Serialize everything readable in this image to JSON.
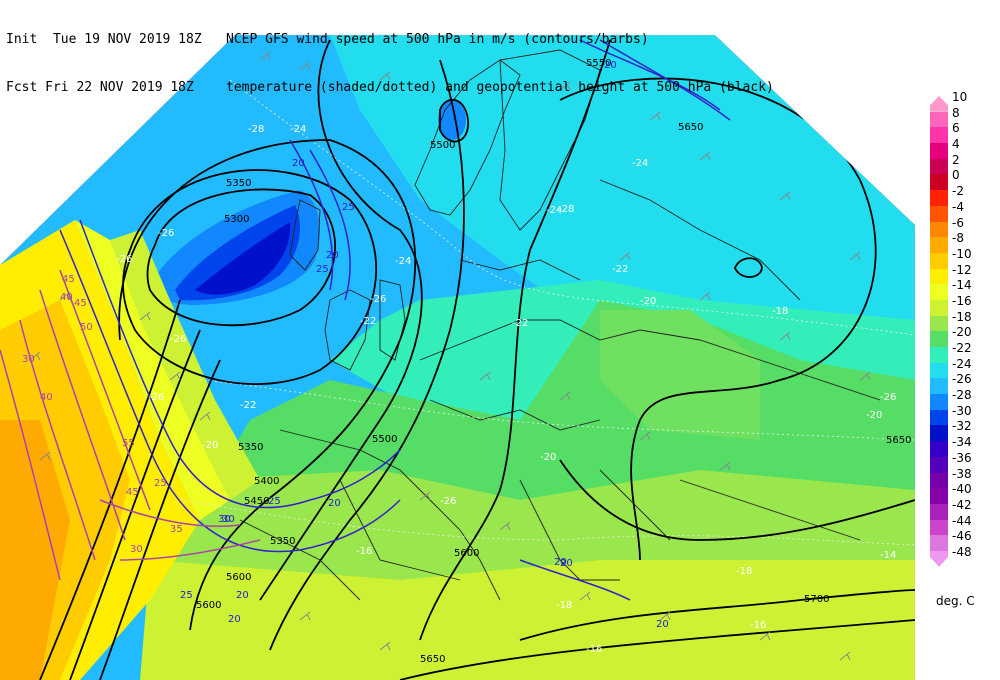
{
  "header": {
    "init_line": "Init  Tue 19 NOV 2019 18Z",
    "fcst_line": "Fcst Fri 22 NOV 2019 18Z",
    "title_line1": "NCEP GFS wind speed at 500 hPa in m/s (contours/barbs)",
    "title_line2": "temperature (shaded/dotted) and geopotential height at 500 hPa (black)"
  },
  "legend": {
    "units": "deg. C",
    "levels": [
      {
        "label": "10",
        "color": "#ff99cc"
      },
      {
        "label": "8",
        "color": "#ff66bb"
      },
      {
        "label": "6",
        "color": "#ff33aa"
      },
      {
        "label": "4",
        "color": "#e6007f"
      },
      {
        "label": "2",
        "color": "#cc0055"
      },
      {
        "label": "0",
        "color": "#cc0022"
      },
      {
        "label": "-2",
        "color": "#ff2200"
      },
      {
        "label": "-4",
        "color": "#ff5500"
      },
      {
        "label": "-6",
        "color": "#ff8800"
      },
      {
        "label": "-8",
        "color": "#ffaa00"
      },
      {
        "label": "-10",
        "color": "#ffcc00"
      },
      {
        "label": "-12",
        "color": "#ffee00"
      },
      {
        "label": "-14",
        "color": "#eeff22"
      },
      {
        "label": "-16",
        "color": "#ccf233"
      },
      {
        "label": "-18",
        "color": "#99e64d"
      },
      {
        "label": "-20",
        "color": "#55dd66"
      },
      {
        "label": "-22",
        "color": "#33eebb"
      },
      {
        "label": "-24",
        "color": "#22ddee"
      },
      {
        "label": "-26",
        "color": "#22bbff"
      },
      {
        "label": "-28",
        "color": "#1188ff"
      },
      {
        "label": "-30",
        "color": "#0044ee"
      },
      {
        "label": "-32",
        "color": "#0011cc"
      },
      {
        "label": "-34",
        "color": "#3300cc"
      },
      {
        "label": "-36",
        "color": "#5500bb"
      },
      {
        "label": "-38",
        "color": "#7700aa"
      },
      {
        "label": "-40",
        "color": "#8800aa"
      },
      {
        "label": "-42",
        "color": "#aa22bb"
      },
      {
        "label": "-44",
        "color": "#cc44cc"
      },
      {
        "label": "-46",
        "color": "#dd77dd"
      },
      {
        "label": "-48",
        "color": "#ee99ee"
      }
    ]
  },
  "map": {
    "height_labels": [
      "5550",
      "5500",
      "5650",
      "5350",
      "5300",
      "5350",
      "5500",
      "5400",
      "5450",
      "5350",
      "5600",
      "5600",
      "5650",
      "5700",
      "5650",
      "5600"
    ],
    "temp_labels": [
      "-28",
      "-26",
      "-24",
      "-26",
      "-26",
      "-22",
      "-20",
      "-26",
      "-26",
      "-24",
      "-22",
      "-20",
      "-24",
      "-22",
      "-20",
      "-22",
      "-24",
      "-26",
      "-16",
      "-18",
      "-16",
      "-18",
      "-16",
      "-14",
      "-18",
      "-20",
      "-28",
      "-26"
    ],
    "wind_labels": [
      "20",
      "25",
      "20",
      "25",
      "20",
      "30",
      "45",
      "40",
      "45",
      "50",
      "55",
      "30",
      "25",
      "30",
      "20",
      "20",
      "25",
      "20",
      "45",
      "40",
      "35",
      "30",
      "25",
      "20",
      "20",
      "20"
    ]
  }
}
